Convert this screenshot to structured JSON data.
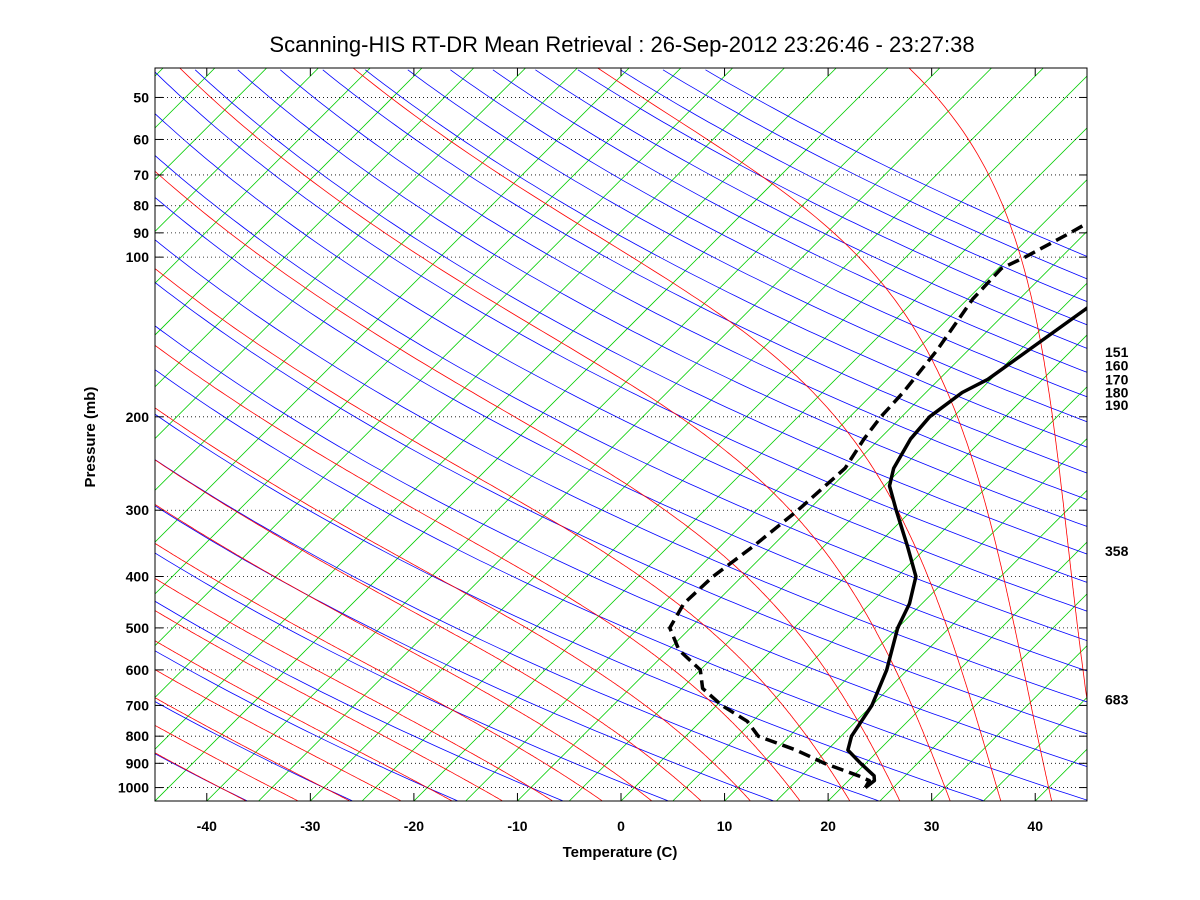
{
  "chart_data": {
    "type": "line",
    "subtype": "skew-t log-p diagram",
    "title": "Scanning-HIS RT-DR Mean Retrieval : 26-Sep-2012 23:26:46 - 23:27:38",
    "xlabel": "Temperature (C)",
    "ylabel": "Pressure (mb)",
    "xlim": [
      -45,
      45
    ],
    "ylim": [
      1060,
      44
    ],
    "x_ticks": [
      -40,
      -30,
      -20,
      -10,
      0,
      10,
      20,
      30,
      40
    ],
    "y_ticks": [
      1000,
      900,
      800,
      700,
      600,
      500,
      400,
      300,
      200,
      100,
      90,
      80,
      70,
      60,
      50
    ],
    "pressure_gridlines": true,
    "right_annotations": [
      {
        "pressure": 151,
        "label": "151"
      },
      {
        "pressure": 160,
        "label": "160"
      },
      {
        "pressure": 170,
        "label": "170"
      },
      {
        "pressure": 180,
        "label": "180"
      },
      {
        "pressure": 190,
        "label": "190"
      },
      {
        "pressure": 358,
        "label": "358"
      },
      {
        "pressure": 683,
        "label": "683"
      }
    ],
    "series": [
      {
        "name": "Temperature",
        "style": "solid",
        "color": "#000000",
        "points": [
          [
            1000,
            22.3
          ],
          [
            970,
            22.5
          ],
          [
            950,
            22.0
          ],
          [
            900,
            19.5
          ],
          [
            850,
            17.0
          ],
          [
            800,
            16.0
          ],
          [
            700,
            15.0
          ],
          [
            600,
            13.0
          ],
          [
            500,
            10.0
          ],
          [
            450,
            8.8
          ],
          [
            400,
            6.8
          ],
          [
            350,
            3.0
          ],
          [
            300,
            -1.5
          ],
          [
            270,
            -4.5
          ],
          [
            250,
            -5.8
          ],
          [
            220,
            -7.0
          ],
          [
            200,
            -7.3
          ],
          [
            180,
            -6.5
          ],
          [
            170,
            -5.3
          ],
          [
            150,
            -4.2
          ],
          [
            125,
            -2.6
          ],
          [
            100,
            -0.2
          ],
          [
            90,
            1.8
          ],
          [
            80,
            5.0
          ],
          [
            70,
            10.5
          ],
          [
            60,
            17.0
          ],
          [
            55,
            22.0
          ],
          [
            50,
            26.0
          ],
          [
            45,
            30.0
          ]
        ]
      },
      {
        "name": "Dewpoint",
        "style": "dashed",
        "color": "#000000",
        "points": [
          [
            1000,
            22.3
          ],
          [
            970,
            22.0
          ],
          [
            950,
            20.5
          ],
          [
            900,
            16.0
          ],
          [
            850,
            12.0
          ],
          [
            800,
            7.0
          ],
          [
            750,
            4.5
          ],
          [
            700,
            0.5
          ],
          [
            650,
            -3.0
          ],
          [
            600,
            -5.0
          ],
          [
            550,
            -9.0
          ],
          [
            500,
            -12.0
          ],
          [
            450,
            -13.0
          ],
          [
            400,
            -12.8
          ],
          [
            350,
            -11.8
          ],
          [
            300,
            -11.0
          ],
          [
            250,
            -10.5
          ],
          [
            220,
            -11.5
          ],
          [
            200,
            -12.0
          ],
          [
            180,
            -12.2
          ],
          [
            150,
            -13.0
          ],
          [
            120,
            -14.5
          ],
          [
            105,
            -14.7
          ],
          [
            100,
            -13.5
          ],
          [
            90,
            -11.5
          ],
          [
            80,
            -9.5
          ],
          [
            70,
            -7.3
          ],
          [
            60,
            -5.0
          ],
          [
            55,
            -3.8
          ],
          [
            50,
            -2.0
          ],
          [
            45,
            0.0
          ]
        ]
      }
    ],
    "background_lines": {
      "isotherms_color": "#00cc00",
      "dry_adiabats_color": "#0000ff",
      "moist_adiabats_color": "#ff0000",
      "mixing_ratio_color": "#9900cc"
    }
  }
}
